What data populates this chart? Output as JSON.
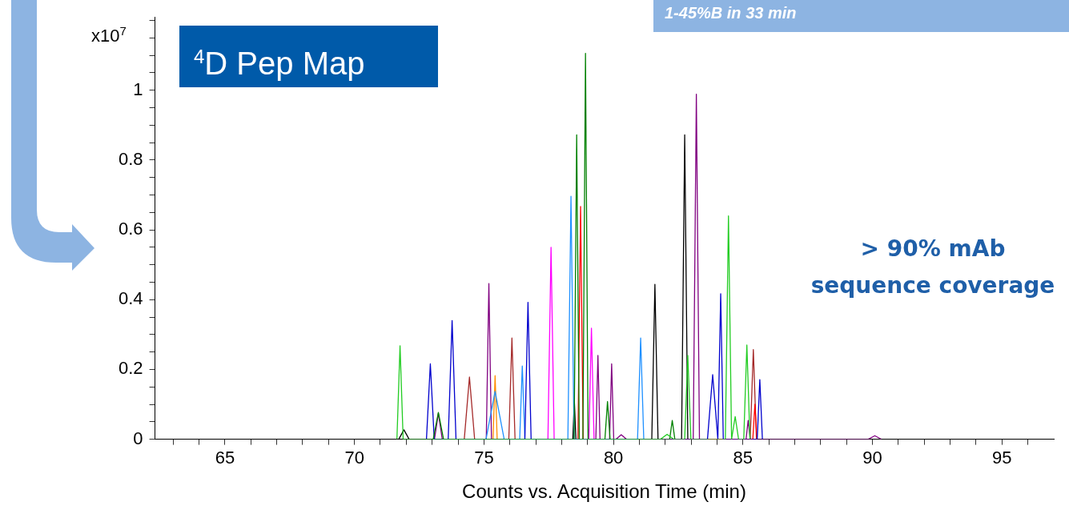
{
  "chart_data": {
    "type": "line",
    "title": "$^{4}$D Pep Map",
    "xlabel": "Counts vs. Acquisition Time (min)",
    "ylabel": "x10$^{7}$",
    "annotations": [
      "1-45%B in 33 min",
      "> 90% mAb sequence coverage"
    ],
    "xlim": [
      62.3,
      97
    ],
    "ylim": [
      0,
      1.21
    ],
    "xticks": [
      {
        "value": 63,
        "label": null
      },
      {
        "value": 64,
        "label": null
      },
      65,
      {
        "value": 66,
        "label": null
      },
      {
        "value": 67,
        "label": null
      },
      {
        "value": 68,
        "label": null
      },
      {
        "value": 69,
        "label": null
      },
      70,
      {
        "value": 71,
        "label": null
      },
      {
        "value": 72,
        "label": null
      },
      {
        "value": 73,
        "label": null
      },
      {
        "value": 74,
        "label": null
      },
      75,
      {
        "value": 76,
        "label": null
      },
      {
        "value": 77,
        "label": null
      },
      {
        "value": 78,
        "label": null
      },
      {
        "value": 79,
        "label": null
      },
      80,
      {
        "value": 81,
        "label": null
      },
      {
        "value": 82,
        "label": null
      },
      {
        "value": 83,
        "label": null
      },
      {
        "value": 84,
        "label": null
      },
      85,
      {
        "value": 86,
        "label": null
      },
      {
        "value": 87,
        "label": null
      },
      {
        "value": 88,
        "label": null
      },
      {
        "value": 89,
        "label": null
      },
      90,
      {
        "value": 91,
        "label": null
      },
      {
        "value": 92,
        "label": null
      },
      {
        "value": 93,
        "label": null
      },
      {
        "value": 94,
        "label": null
      },
      95,
      {
        "value": 96,
        "label": null
      }
    ],
    "yticks": [
      0,
      {
        "value": 0.05,
        "label": null
      },
      {
        "value": 0.1,
        "label": null
      },
      {
        "value": 0.15,
        "label": null
      },
      0.2,
      {
        "value": 0.25,
        "label": null
      },
      {
        "value": 0.3,
        "label": null
      },
      {
        "value": 0.35,
        "label": null
      },
      0.4,
      {
        "value": 0.45,
        "label": null
      },
      {
        "value": 0.5,
        "label": null
      },
      {
        "value": 0.55,
        "label": null
      },
      0.6,
      {
        "value": 0.65,
        "label": null
      },
      {
        "value": 0.7,
        "label": null
      },
      {
        "value": 0.75,
        "label": null
      },
      0.8,
      {
        "value": 0.85,
        "label": null
      },
      {
        "value": 0.9,
        "label": null
      },
      {
        "value": 0.95,
        "label": null
      },
      1,
      {
        "value": 1.05,
        "label": null
      },
      {
        "value": 1.1,
        "label": null
      },
      {
        "value": 1.15,
        "label": null
      },
      {
        "value": 1.2,
        "label": null
      }
    ],
    "grid": false,
    "legend": false,
    "marker": "none",
    "line_style": "solid",
    "series": [
      {
        "color": "#22cc22",
        "x": [
          71.64,
          71.76,
          71.88,
          81.82,
          82.07,
          82.32,
          82.75,
          82.87,
          82.99,
          84.32,
          84.44,
          84.56,
          84.57,
          84.7,
          84.83,
          85.03,
          85.15,
          85.27
        ],
        "values": [
          0,
          0.268,
          0,
          0,
          0.014,
          0,
          0,
          0.24,
          0,
          0,
          0.64,
          0,
          0,
          0.065,
          0,
          0,
          0.27,
          0
        ]
      },
      {
        "color": "#008000",
        "x": [
          73.04,
          73.24,
          73.44,
          78.48,
          78.58,
          78.68,
          78.82,
          78.92,
          79.02,
          79.67,
          79.77,
          79.87,
          82.17,
          82.27,
          82.37
        ],
        "values": [
          0,
          0.077,
          0,
          0,
          0.872,
          0,
          0,
          1.106,
          0,
          0,
          0.108,
          0,
          0,
          0.054,
          0
        ]
      },
      {
        "color": "#0000cd",
        "x": [
          72.78,
          72.93,
          73.08,
          73.62,
          73.77,
          73.92,
          76.58,
          76.7,
          76.82,
          83.63,
          83.83,
          84.03,
          84.04,
          84.14,
          84.24,
          85.55,
          85.65,
          85.75
        ],
        "values": [
          0,
          0.216,
          0,
          0,
          0.34,
          0,
          0,
          0.392,
          0,
          0,
          0.185,
          0,
          0,
          0.417,
          0,
          0,
          0.171,
          0
        ]
      },
      {
        "color": "#1e90ff",
        "x": [
          75.08,
          75.43,
          75.78,
          76.38,
          76.48,
          76.58,
          78.24,
          78.36,
          78.48,
          80.93,
          81.05,
          81.17
        ],
        "values": [
          0,
          0.137,
          0,
          0,
          0.21,
          0,
          0,
          0.696,
          0,
          0,
          0.29,
          0
        ]
      },
      {
        "color": "#ff0000",
        "x": [
          78.63,
          78.73,
          78.83,
          85.38,
          85.46,
          85.54
        ],
        "values": [
          0,
          0.667,
          0,
          0,
          0.1,
          0
        ]
      },
      {
        "color": "#ff00ff",
        "x": [
          77.47,
          77.59,
          77.71,
          79.05,
          79.15,
          79.25
        ],
        "values": [
          0,
          0.55,
          0,
          0,
          0.318,
          0
        ]
      },
      {
        "color": "#800080",
        "x": [
          73.09,
          73.24,
          73.39,
          75.09,
          75.19,
          75.29,
          79.32,
          79.4,
          79.48,
          79.85,
          79.93,
          80.01,
          80.1,
          80.3,
          80.5,
          83.08,
          83.2,
          83.32,
          85.12,
          85.2,
          85.28,
          89.84,
          90.09,
          90.34
        ],
        "values": [
          0,
          0.074,
          0,
          0,
          0.446,
          0,
          0,
          0.24,
          0,
          0,
          0.216,
          0,
          0,
          0.013,
          0,
          0,
          0.989,
          0,
          0,
          0.054,
          0,
          0,
          0.01,
          0
        ]
      },
      {
        "color": "#a52a2a",
        "x": [
          74.24,
          74.44,
          74.64,
          75.96,
          76.08,
          76.2,
          85.28,
          85.4,
          85.52
        ],
        "values": [
          0,
          0.178,
          0,
          0,
          0.29,
          0,
          0,
          0.257,
          0
        ]
      },
      {
        "color": "#000000",
        "x": [
          71.71,
          71.91,
          72.11,
          78.43,
          78.49,
          78.55,
          81.48,
          81.6,
          81.72,
          82.63,
          82.75,
          82.87
        ],
        "values": [
          0,
          0.027,
          0,
          0,
          0.11,
          0,
          0,
          0.444,
          0,
          0,
          0.872,
          0
        ]
      },
      {
        "color": "#ff8c00",
        "x": [
          75.35,
          75.43,
          75.51
        ],
        "values": [
          0,
          0.182,
          0
        ]
      }
    ]
  }
}
